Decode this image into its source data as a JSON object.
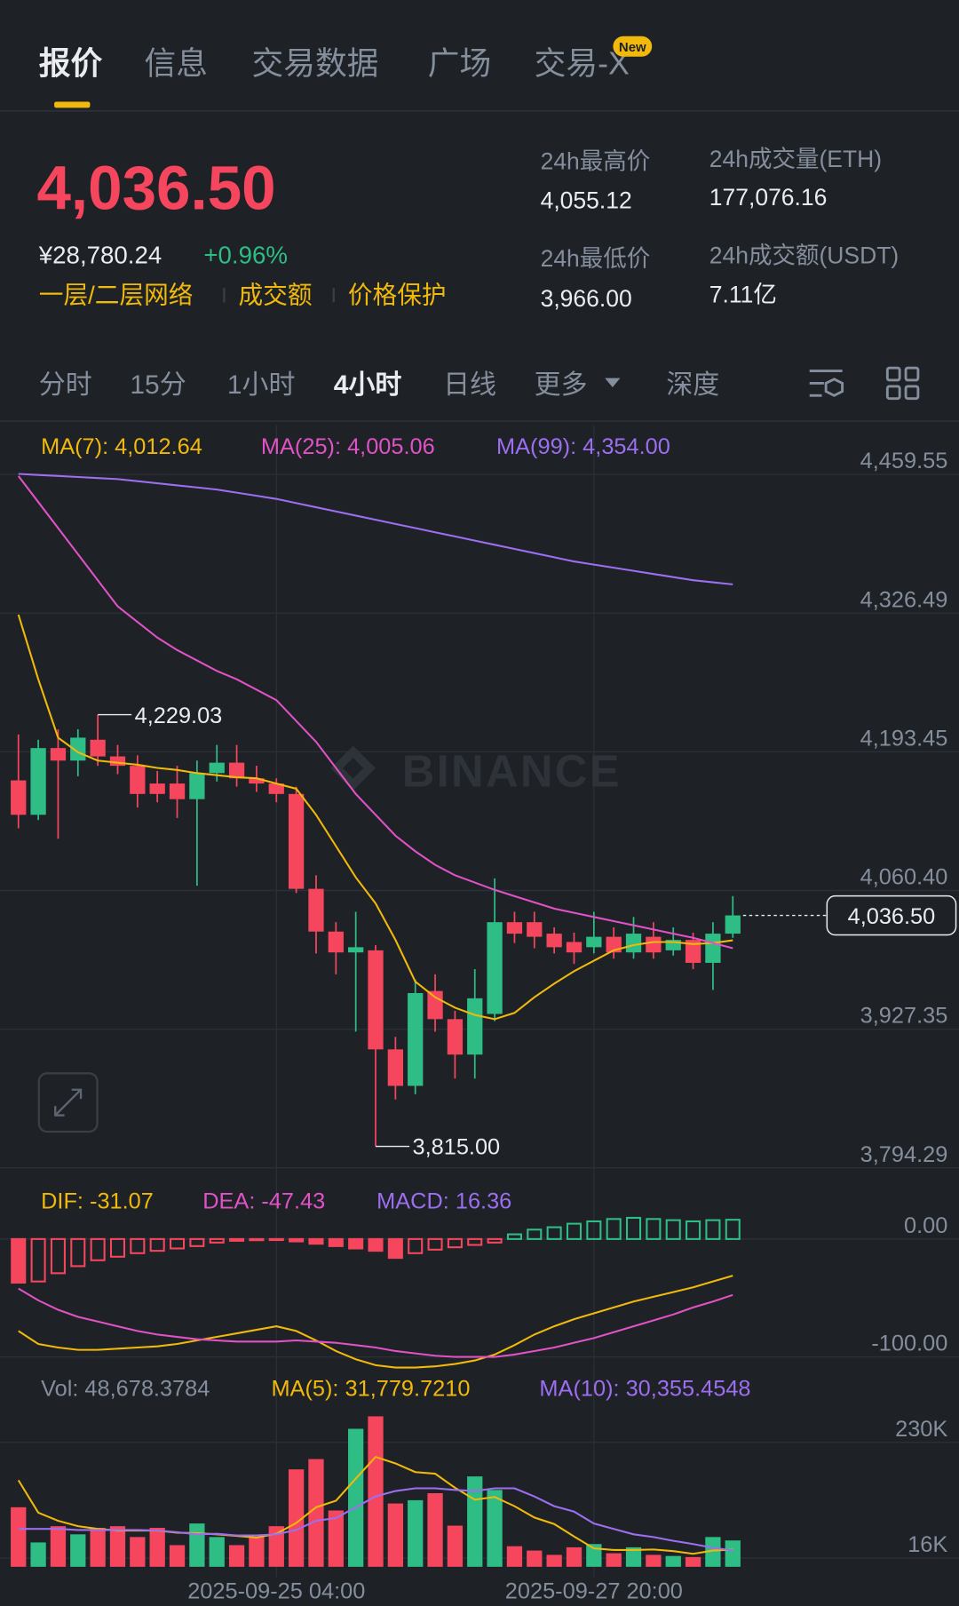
{
  "tabs": [
    "报价",
    "信息",
    "交易数据",
    "广场",
    "交易-X"
  ],
  "tab_badge": "New",
  "ticker": {
    "price": "4,036.50",
    "cny": "¥28,780.24",
    "change": "+0.96%",
    "tags": [
      "一层/二层网络",
      "成交额",
      "价格保护"
    ],
    "stats": [
      {
        "label": "24h最高价",
        "value": "4,055.12"
      },
      {
        "label": "24h最低价",
        "value": "3,966.00"
      },
      {
        "label": "24h成交量(ETH)",
        "value": "177,076.16"
      },
      {
        "label": "24h成交额(USDT)",
        "value": "7.11亿"
      }
    ]
  },
  "intervals": [
    "分时",
    "15分",
    "1小时",
    "4小时",
    "日线",
    "更多",
    "深度"
  ],
  "chart_data": [
    {
      "type": "candlestick",
      "ylim": [
        3789.8,
        4506.7
      ],
      "yticks": [
        {
          "value": 4459.55,
          "label": "4,459.55"
        },
        {
          "value": 4326.49,
          "label": "4,326.49"
        },
        {
          "value": 4193.45,
          "label": "4,193.45"
        },
        {
          "value": 4060.4,
          "label": "4,060.40"
        },
        {
          "value": 3927.35,
          "label": "3,927.35"
        },
        {
          "value": 3794.29,
          "label": "3,794.29"
        }
      ],
      "grid": true,
      "up_color": "#2ebd85",
      "down_color": "#f6465d",
      "open": [
        4166,
        4133,
        4197,
        4185,
        4205,
        4189,
        4180,
        4163,
        4163,
        4148,
        4173,
        4183,
        4168,
        4163,
        4153,
        4062,
        4021,
        4001,
        4003,
        3908,
        3873,
        3964,
        3937,
        3903,
        3942,
        4030,
        4030,
        4019,
        4011,
        4006,
        4016,
        4001,
        4016,
        4003,
        4013,
        3991,
        4019
      ],
      "high": [
        4210,
        4205,
        4215,
        4215,
        4229.03,
        4200,
        4190,
        4175,
        4180,
        4185,
        4200,
        4200,
        4180,
        4168,
        4160,
        4075,
        4030,
        4040,
        4008,
        3920,
        3975,
        3980,
        3945,
        3985,
        4072,
        4040,
        4040,
        4025,
        4020,
        4040,
        4025,
        4035,
        4030,
        4025,
        4020,
        4030,
        4055
      ],
      "low": [
        4120,
        4128,
        4110,
        4170,
        4180,
        4172,
        4140,
        4145,
        4130,
        4065,
        4165,
        4160,
        4155,
        4145,
        4058,
        4000,
        3980,
        3925,
        3815,
        3860,
        3865,
        3925,
        3880,
        3880,
        3935,
        4010,
        4005,
        4000,
        3990,
        4000,
        3995,
        3995,
        3995,
        3998,
        3985,
        3965,
        4015
      ],
      "close": [
        4133,
        4197,
        4185,
        4207,
        4189,
        4180,
        4153,
        4153,
        4148,
        4173,
        4183,
        4168,
        4163,
        4153,
        4062,
        4021,
        4001,
        4006,
        3908,
        3873,
        3962,
        3937,
        3903,
        3957,
        4030,
        4019,
        4016,
        4006,
        4001,
        4016,
        4001,
        4019,
        4001,
        4013,
        3991,
        4019,
        4036.5
      ],
      "lines": [
        {
          "label": "MA(7): 4,012.64",
          "color": "#f0b90b",
          "values": [
            4325,
            4263,
            4207,
            4193,
            4185,
            4183,
            4181,
            4178,
            4176,
            4173,
            4171,
            4169,
            4168,
            4163,
            4158,
            4133,
            4103,
            4073,
            4048,
            4013,
            3973,
            3958,
            3948,
            3941,
            3937,
            3943,
            3958,
            3971,
            3983,
            3993,
            4003,
            4008,
            4011,
            4011,
            4009,
            4010,
            4012.64
          ]
        },
        {
          "label": "MA(25): 4,005.06",
          "color": "#e052c6",
          "values": [
            4458,
            4433,
            4408,
            4383,
            4358,
            4333,
            4318,
            4303,
            4291,
            4281,
            4271,
            4263,
            4253,
            4243,
            4223,
            4203,
            4178,
            4153,
            4133,
            4113,
            4098,
            4085,
            4075,
            4068,
            4061,
            4055,
            4049,
            4043,
            4039,
            4035,
            4031,
            4027,
            4023,
            4019,
            4015,
            4010,
            4005.06
          ]
        },
        {
          "label": "MA(99): 4,354.00",
          "color": "#9c6ef0",
          "values": [
            4460,
            4459,
            4458,
            4457,
            4456,
            4455,
            4453,
            4451,
            4449,
            4447,
            4445,
            4442,
            4439,
            4436,
            4432,
            4428,
            4424,
            4420,
            4416,
            4412,
            4408,
            4404,
            4400,
            4396,
            4392,
            4388,
            4384,
            4380,
            4376,
            4373,
            4370,
            4367,
            4364,
            4361,
            4358,
            4356,
            4354
          ]
        }
      ],
      "annotations": [
        {
          "text": "4,229.03",
          "value": 4229.03
        },
        {
          "text": "3,815.00",
          "value": 3815
        }
      ],
      "last_price": {
        "text": "4,036.50",
        "value": 4036.5
      },
      "watermark": "BINANCE"
    },
    {
      "type": "macd",
      "ylim": [
        -113,
        52
      ],
      "yticks": [
        {
          "value": 0,
          "label": "0.00"
        },
        {
          "value": -100,
          "label": "-100.00"
        }
      ],
      "grid": true,
      "histogram": {
        "label": "MACD: 16.36",
        "color": "#9c6ef0",
        "values": [
          -37,
          -36,
          -29,
          -23,
          -18,
          -15,
          -12,
          -10,
          -8,
          -6,
          -3,
          -1.5,
          -1,
          -0.5,
          -2,
          -4,
          -6,
          -8,
          -10,
          -16,
          -12,
          -9,
          -7,
          -5,
          -3,
          4,
          8,
          10,
          13,
          15,
          17,
          18,
          17,
          16,
          15,
          16,
          16.36
        ]
      },
      "lines": [
        {
          "label": "DIF: -31.07",
          "color": "#f0b90b",
          "values": [
            -78,
            -89,
            -92,
            -94,
            -94,
            -93,
            -92,
            -91,
            -89,
            -86,
            -83,
            -80,
            -77,
            -74,
            -78,
            -86,
            -95,
            -102,
            -107,
            -109,
            -109,
            -108,
            -106,
            -103,
            -98,
            -90,
            -81,
            -74,
            -68,
            -63,
            -58,
            -53,
            -49,
            -45,
            -41,
            -36,
            -31.07
          ]
        },
        {
          "label": "DEA: -47.43",
          "color": "#e052c6",
          "values": [
            -42,
            -52,
            -60,
            -66,
            -70,
            -74,
            -78,
            -81,
            -83,
            -85,
            -86,
            -87,
            -87,
            -87,
            -86,
            -87,
            -88,
            -90,
            -92,
            -95,
            -97,
            -99,
            -100,
            -100,
            -100,
            -98,
            -95,
            -92,
            -88,
            -84,
            -79,
            -74,
            -69,
            -64,
            -58,
            -53,
            -47.43
          ]
        }
      ]
    },
    {
      "type": "volume",
      "ylim": [
        0,
        350000
      ],
      "yticks": [
        {
          "value": 230000,
          "label": "230K"
        },
        {
          "value": 16000,
          "label": "16K"
        }
      ],
      "grid": true,
      "label": "Vol: 48,678.3784",
      "categories": [
        null,
        null,
        null,
        null,
        null,
        null,
        null,
        null,
        null,
        null,
        null,
        null,
        null,
        "2025-09-25 04:00",
        null,
        null,
        null,
        null,
        null,
        null,
        null,
        null,
        null,
        null,
        null,
        null,
        null,
        null,
        null,
        "2025-09-27 20:00",
        null,
        null,
        null,
        null,
        null,
        null,
        null
      ],
      "values": [
        110000,
        45000,
        75000,
        60000,
        72000,
        75000,
        55000,
        72000,
        40000,
        80000,
        55000,
        40000,
        55000,
        75000,
        180000,
        199000,
        104000,
        255000,
        278000,
        117000,
        123000,
        136000,
        76000,
        167000,
        142000,
        38000,
        30000,
        22000,
        36000,
        42000,
        25000,
        36000,
        22000,
        20000,
        18000,
        55000,
        48678.3784
      ],
      "lines": [
        {
          "label": "MA(5): 31,779.7210",
          "color": "#f0b90b",
          "values": [
            160000,
            100000,
            85000,
            75000,
            70000,
            67000,
            67000,
            67000,
            63000,
            62000,
            60000,
            57000,
            54000,
            61000,
            81000,
            110000,
            122000,
            163000,
            203000,
            191000,
            175000,
            172000,
            146000,
            124000,
            129000,
            112000,
            91000,
            79000,
            56000,
            34000,
            31000,
            31000,
            32000,
            29000,
            24000,
            30000,
            31779.721
          ]
        },
        {
          "label": "MA(10): 30,355.4548",
          "color": "#9c6ef0",
          "values": [
            70000,
            70000,
            70000,
            68000,
            68000,
            68000,
            68000,
            67000,
            64000,
            60000,
            61000,
            58000,
            58000,
            60000,
            68000,
            85000,
            90000,
            110000,
            130000,
            140000,
            145000,
            145000,
            142000,
            140000,
            145000,
            145000,
            130000,
            112000,
            102000,
            80000,
            70000,
            60000,
            55000,
            48000,
            42000,
            35000,
            30355.4548
          ]
        }
      ]
    }
  ]
}
